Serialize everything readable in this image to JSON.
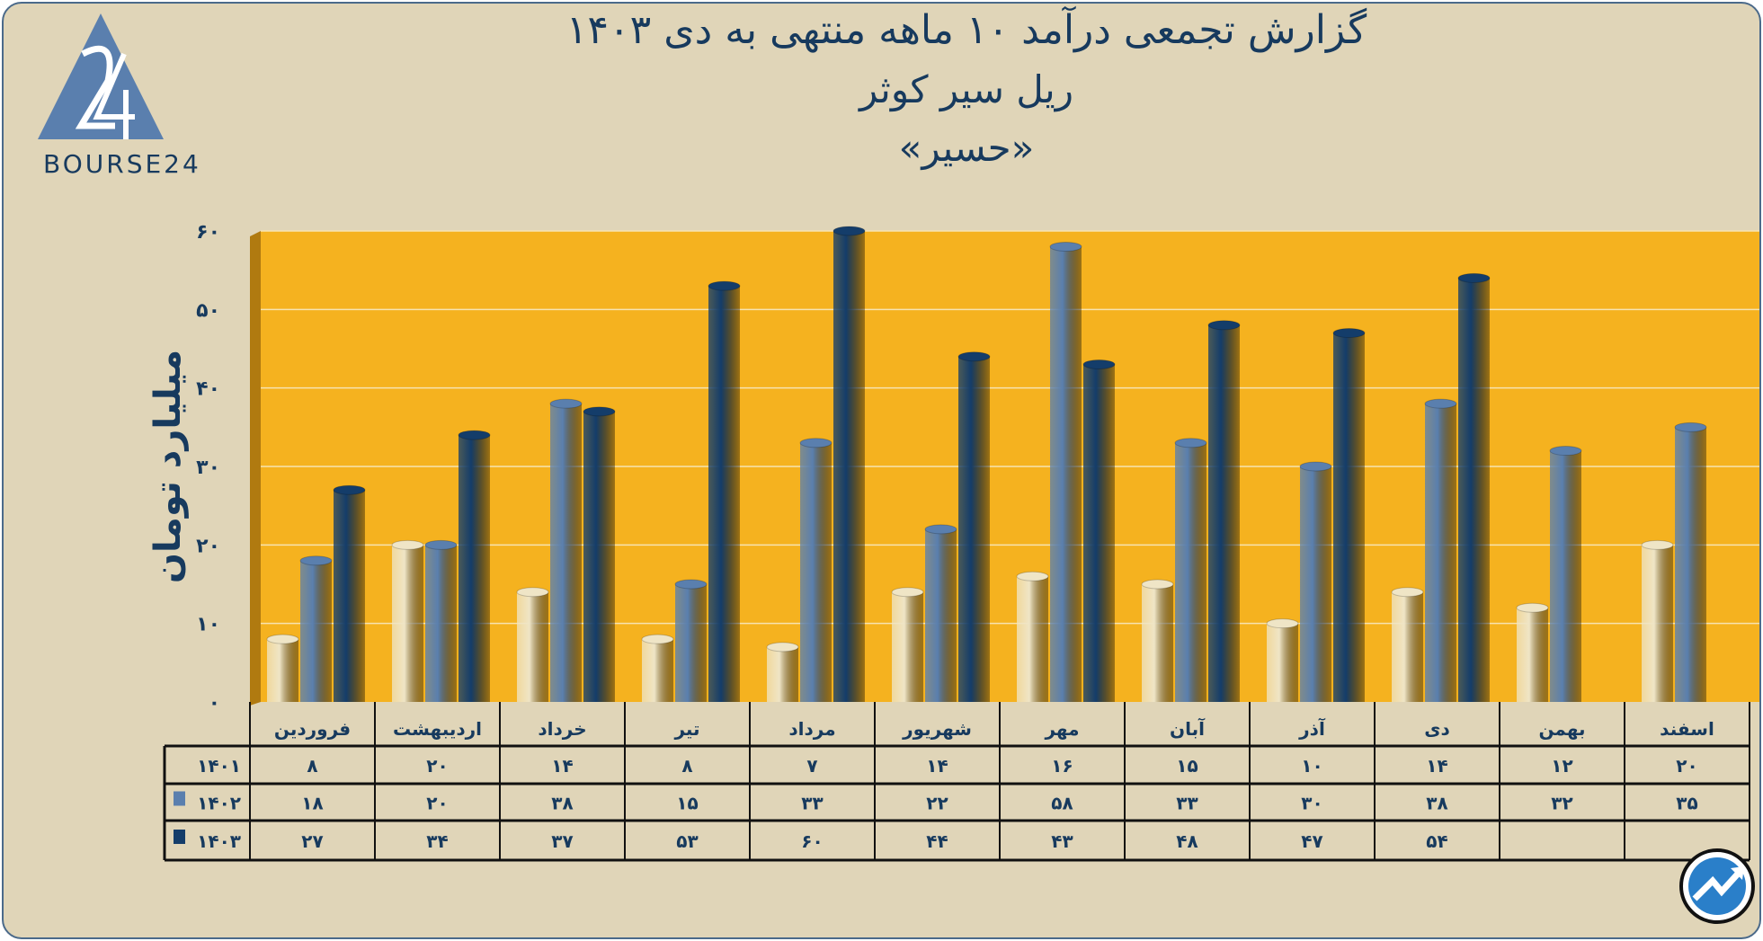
{
  "header": {
    "title_line1": "گزارش تجمعی درآمد ۱۰ ماهه منتهی به دی ۱۴۰۳",
    "title_line2": "ریل سیر کوثر",
    "title_line3": "«حسیر»",
    "logo_text": "BOURSE24"
  },
  "chart_data": {
    "type": "bar",
    "title": "گزارش تجمعی درآمد ۱۰ ماهه منتهی به دی ۱۴۰۳",
    "ylabel": "میلیارد تومان",
    "xlabel": "",
    "ylim": [
      0,
      60
    ],
    "yticks": [
      0,
      10,
      20,
      30,
      40,
      50,
      60
    ],
    "ytick_labels": [
      "۰",
      "۱۰",
      "۲۰",
      "۳۰",
      "۴۰",
      "۵۰",
      "۶۰"
    ],
    "grid": true,
    "categories": [
      "فروردین",
      "اردیبهشت",
      "خرداد",
      "تیر",
      "مرداد",
      "شهریور",
      "مهر",
      "آبان",
      "آذر",
      "دی",
      "بهمن",
      "اسفند"
    ],
    "series": [
      {
        "name": "۱۴۰۱",
        "color": "#efe5c6",
        "values": [
          8,
          20,
          14,
          8,
          7,
          14,
          16,
          15,
          10,
          14,
          12,
          20
        ],
        "labels": [
          "۸",
          "۲۰",
          "۱۴",
          "۸",
          "۷",
          "۱۴",
          "۱۶",
          "۱۵",
          "۱۰",
          "۱۴",
          "۱۲",
          "۲۰"
        ]
      },
      {
        "name": "۱۴۰۲",
        "color": "#5a7fae",
        "values": [
          18,
          20,
          38,
          15,
          33,
          22,
          58,
          33,
          30,
          38,
          32,
          35
        ],
        "labels": [
          "۱۸",
          "۲۰",
          "۳۸",
          "۱۵",
          "۳۳",
          "۲۲",
          "۵۸",
          "۳۳",
          "۳۰",
          "۳۸",
          "۳۲",
          "۳۵"
        ]
      },
      {
        "name": "۱۴۰۳",
        "color": "#143d6a",
        "values": [
          27,
          34,
          37,
          53,
          60,
          44,
          43,
          48,
          47,
          54,
          null,
          null
        ],
        "labels": [
          "۲۷",
          "۳۴",
          "۳۷",
          "۵۳",
          "۶۰",
          "۴۴",
          "۴۳",
          "۴۸",
          "۴۷",
          "۵۴",
          "",
          ""
        ]
      }
    ],
    "legend": "table-rows",
    "plot_bg": "#f5b21f"
  }
}
